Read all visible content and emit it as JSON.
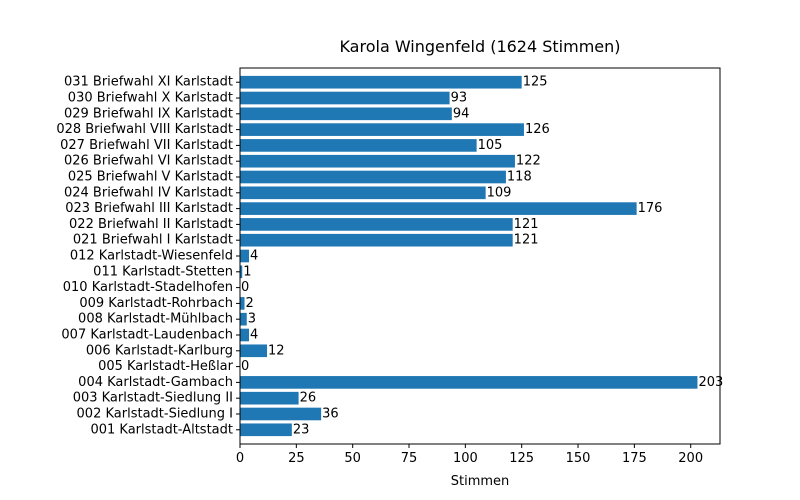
{
  "chart_data": {
    "type": "bar",
    "orientation": "horizontal",
    "title": "Karola Wingenfeld (1624 Stimmen)",
    "xlabel": "Stimmen",
    "ylabel": "",
    "xlim": [
      0,
      213
    ],
    "xticks": [
      0,
      25,
      50,
      75,
      100,
      125,
      150,
      175,
      200
    ],
    "grid": false,
    "bar_color": "#1f77b4",
    "categories": [
      "001 Karlstadt-Altstadt",
      "002 Karlstadt-Siedlung I",
      "003 Karlstadt-Siedlung II",
      "004 Karlstadt-Gambach",
      "005 Karlstadt-Heßlar",
      "006 Karlstadt-Karlburg",
      "007 Karlstadt-Laudenbach",
      "008 Karlstadt-Mühlbach",
      "009 Karlstadt-Rohrbach",
      "010 Karlstadt-Stadelhofen",
      "011 Karlstadt-Stetten",
      "012 Karlstadt-Wiesenfeld",
      "021 Briefwahl I Karlstadt",
      "022 Briefwahl II Karlstadt",
      "023 Briefwahl III Karlstadt",
      "024 Briefwahl IV Karlstadt",
      "025 Briefwahl V Karlstadt",
      "026 Briefwahl VI Karlstadt",
      "027 Briefwahl VII Karlstadt",
      "028 Briefwahl VIII Karlstadt",
      "029 Briefwahl IX Karlstadt",
      "030 Briefwahl X Karlstadt",
      "031 Briefwahl XI Karlstadt"
    ],
    "values": [
      23,
      36,
      26,
      203,
      0,
      12,
      4,
      3,
      2,
      0,
      1,
      4,
      121,
      121,
      176,
      109,
      118,
      122,
      105,
      126,
      94,
      93,
      125
    ]
  }
}
